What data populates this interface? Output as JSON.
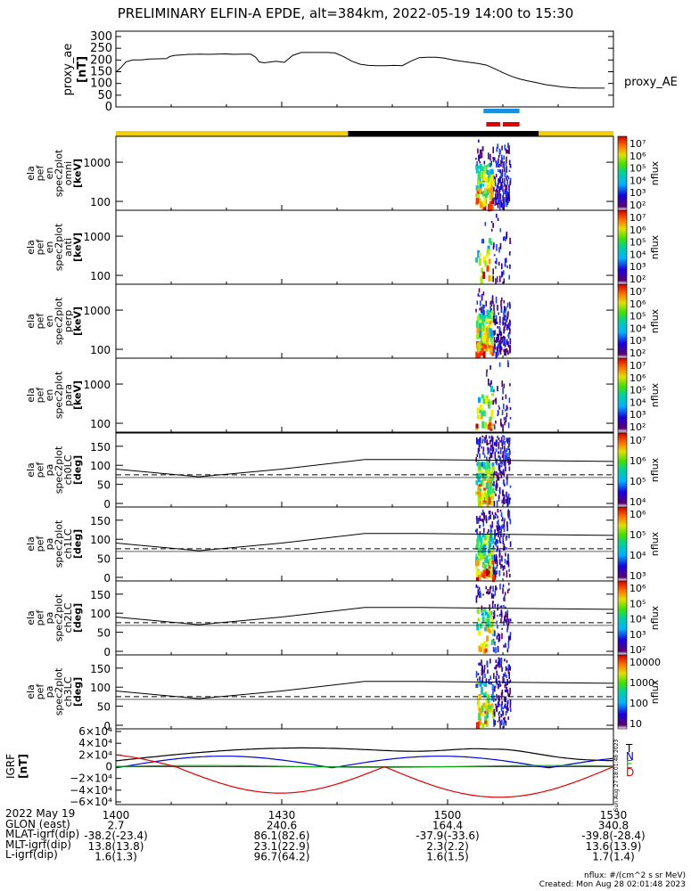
{
  "title": "PRELIMINARY ELFIN-A EPDE, alt=384km, 2022-05-19 14:00 to 15:30",
  "colors": {
    "day": "#f5d000",
    "night": "#000000",
    "science_blue": "#1a8fe0",
    "science_red": "#e00000",
    "bx": "#000000",
    "by": "#0000e0",
    "bz": "#00b000",
    "bd": "#e00000"
  },
  "ae_panel": {
    "ylabel": "proxy_ae",
    "yunit": "[nT]",
    "legend": "proxy_AE",
    "ylim": [
      0,
      300
    ],
    "yticks": [
      "300",
      "250",
      "200",
      "150",
      "100",
      "50",
      "0"
    ],
    "t": [
      0,
      3,
      6,
      10,
      15,
      20,
      30,
      32,
      35,
      40,
      43,
      45,
      50,
      55,
      60,
      65,
      70,
      75,
      80,
      83,
      85,
      88,
      90,
      95,
      100,
      105,
      110,
      115,
      120,
      125,
      130,
      135,
      140,
      145,
      150,
      155,
      160,
      165,
      170,
      175,
      180,
      185,
      190,
      195,
      200,
      205,
      210,
      215,
      220,
      225,
      230,
      235,
      240,
      245,
      250,
      255,
      260,
      265,
      270,
      275,
      280,
      285,
      290
    ],
    "v": [
      148,
      168,
      192,
      200,
      200,
      204,
      206,
      215,
      220,
      222,
      224,
      224,
      225,
      224,
      225,
      226,
      224,
      225,
      225,
      212,
      192,
      188,
      190,
      195,
      190,
      220,
      232,
      232,
      232,
      232,
      230,
      215,
      195,
      182,
      177,
      176,
      176,
      177,
      176,
      195,
      210,
      212,
      212,
      208,
      200,
      195,
      190,
      185,
      178,
      162,
      145,
      130,
      118,
      110,
      103,
      95,
      90,
      85,
      82,
      80,
      80,
      80,
      80
    ]
  },
  "bars": {
    "science_marks": [
      {
        "color": "science_blue",
        "from": 133,
        "to": 146
      },
      {
        "color": "science_red",
        "from": 134,
        "to": 139
      },
      {
        "color": "science_red",
        "from": 140,
        "to": 146
      }
    ],
    "orbit": [
      {
        "state": "day",
        "from": 0,
        "to": 84
      },
      {
        "state": "night",
        "from": 84,
        "to": 153
      },
      {
        "state": "day",
        "from": 153,
        "to": 180
      }
    ]
  },
  "spec_panels": [
    {
      "labels": [
        "ela",
        "pef",
        "en",
        "spec2plot",
        "omni"
      ],
      "unit": "[keV]",
      "yticks": [
        "1000",
        "100"
      ],
      "clabel": "nflux",
      "cticks": [
        "10⁷",
        "10⁶",
        "10⁵",
        "10⁴",
        "10³",
        "10²"
      ],
      "density": 1.0
    },
    {
      "labels": [
        "ela",
        "pef",
        "en",
        "spec2plot",
        "anti"
      ],
      "unit": "[keV]",
      "yticks": [
        "1000",
        "100"
      ],
      "clabel": "nflux",
      "cticks": [
        "10⁷",
        "10⁶",
        "10⁵",
        "10⁴",
        "10³",
        "10²"
      ],
      "density": 0.25
    },
    {
      "labels": [
        "ela",
        "pef",
        "en",
        "spec2plot",
        "perp"
      ],
      "unit": "[keV]",
      "yticks": [
        "1000",
        "100"
      ],
      "clabel": "nflux",
      "cticks": [
        "10⁷",
        "10⁶",
        "10⁵",
        "10⁴",
        "10³",
        "10²"
      ],
      "density": 1.0
    },
    {
      "labels": [
        "ela",
        "pef",
        "en",
        "spec2plot",
        "para"
      ],
      "unit": "[keV]",
      "yticks": [
        "1000",
        "100"
      ],
      "clabel": "nflux",
      "cticks": [
        "10⁷",
        "10⁶",
        "10⁵",
        "10⁴",
        "10³",
        "10²"
      ],
      "density": 0.3
    }
  ],
  "pa_panels": [
    {
      "labels": [
        "ela",
        "pef",
        "pa",
        "spec2plot",
        "ch0LC"
      ],
      "unit": "[deg]",
      "yticks": [
        "150",
        "100",
        "50",
        "0"
      ],
      "clabel": "nflux",
      "cticks": [
        "10⁷",
        "10⁶",
        "10⁵",
        "10⁴"
      ],
      "density": 1.0
    },
    {
      "labels": [
        "ela",
        "pef",
        "pa",
        "spec2plot",
        "ch1LC"
      ],
      "unit": "[deg]",
      "yticks": [
        "150",
        "100",
        "50",
        "0"
      ],
      "clabel": "nflux",
      "cticks": [
        "10⁶",
        "10⁵",
        "10⁴",
        "10³"
      ],
      "density": 0.9
    },
    {
      "labels": [
        "ela",
        "pef",
        "pa",
        "spec2plot",
        "ch2LC"
      ],
      "unit": "[deg]",
      "yticks": [
        "150",
        "100",
        "50",
        "0"
      ],
      "clabel": "nflux",
      "cticks": [
        "10⁶",
        "10⁵",
        "10⁴",
        "10³",
        "10²"
      ],
      "density": 0.5
    },
    {
      "labels": [
        "ela",
        "pef",
        "pa",
        "spec2plot",
        "ch3LC"
      ],
      "unit": "[deg]",
      "yticks": [
        "150",
        "100",
        "50",
        "0"
      ],
      "clabel": "nflux",
      "cticks": [
        "10000",
        "1000",
        "100",
        "10"
      ],
      "density": 0.7
    }
  ],
  "igrf_panel": {
    "ylabel": "IGRF",
    "unit": "[nT]",
    "yticks": [
      "6×10⁴",
      "4×10⁴",
      "2×10⁴",
      "0",
      "−2×10⁴",
      "−4×10⁴",
      "−6×10⁴"
    ],
    "legend": [
      "T",
      "N",
      "E",
      "D"
    ],
    "side_note": "Sun Aug 27 18:01:48 2023"
  },
  "footer": {
    "rows": [
      {
        "label": "2022 May 19",
        "values": [
          "1400",
          "1430",
          "1500",
          "1530"
        ]
      },
      {
        "label": "GLON (east)",
        "values": [
          "2.7",
          "240.6",
          "164.4",
          "340.8"
        ]
      },
      {
        "label": "MLAT-igrf(dip)",
        "values": [
          "-38.2(-23.4)",
          "86.1(82.6)",
          "-37.9(-33.6)",
          "-39.8(-28.4)"
        ]
      },
      {
        "label": "MLT-igrf(dip)",
        "values": [
          "13.8(13.8)",
          "23.1(22.9)",
          "2.3(2.2)",
          "13.6(13.9)"
        ]
      },
      {
        "label": "L-igrf(dip)",
        "values": [
          "1.6(1.3)",
          "96.7(64.2)",
          "1.6(1.5)",
          "1.7(1.4)"
        ]
      }
    ],
    "note1": "nflux: #/(cm^2 s sr MeV)",
    "note2": "Created: Mon Aug 28 02:01:48 2023"
  },
  "chart_data": {
    "type": "multi-panel time series / spectrogram",
    "x_range_minutes": [
      0,
      90
    ],
    "x_tick_labels": [
      "1400",
      "1430",
      "1500",
      "1530"
    ],
    "ae_series": "proxy_AE",
    "igrf_components": [
      "T",
      "N",
      "E",
      "D"
    ]
  }
}
